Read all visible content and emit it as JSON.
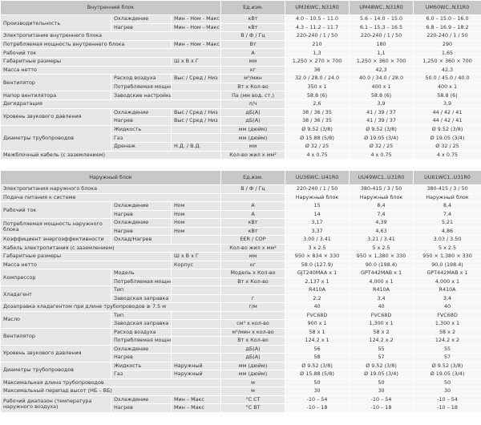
{
  "sections": [
    {
      "header": {
        "title": "Внутренний блок",
        "unit": "Ед.изм.",
        "models": [
          "UM36WC..N31R0",
          "UM48WC..N31R0",
          "UM60WC..N31R0"
        ]
      },
      "groups": [
        {
          "name": "Производительность",
          "rows": [
            {
              "sub": "Охлаждение",
              "mode": "Мин - Ном - Макс",
              "unit": "кВт",
              "values": [
                "4.0 – 10.5 – 11.0",
                "5.6 – 14.0 – 15.0",
                "6.0 – 15.0 – 16.0"
              ]
            },
            {
              "sub": "Нагрев",
              "mode": "Мин - Ном - Макс",
              "unit": "кВт",
              "values": [
                "4.3 – 11.2 – 11.7",
                "6.1 – 15.3 – 16.5",
                "6.8 – 16.9 – 18.2"
              ]
            }
          ]
        },
        {
          "name": "Электропитание внутреннего блока",
          "rows": [
            {
              "unit": "В / Ф / Гц",
              "values": [
                "220-240 / 1 / 50",
                "220-240 / 1 / 50",
                "220-240 / 1 / 50"
              ]
            }
          ]
        },
        {
          "name": "Потребляемая мощность внутреннего блока",
          "rows": [
            {
              "mode": "Мин - Ном - Макс",
              "unit": "Вт",
              "values": [
                "210",
                "180",
                "290"
              ]
            }
          ]
        },
        {
          "name": "Рабочий ток",
          "rows": [
            {
              "unit": "А",
              "values": [
                "1,3",
                "1,1",
                "1,65"
              ]
            }
          ]
        },
        {
          "name": "Габаритные размеры",
          "rows": [
            {
              "mode": "Ш x В x Г",
              "unit": "мм",
              "values": [
                "1,250 × 270 × 700",
                "1,250 × 360 × 700",
                "1,250 × 360 × 700"
              ]
            }
          ]
        },
        {
          "name": "Масса нетто",
          "rows": [
            {
              "unit": "кг",
              "values": [
                "36",
                "42,3",
                "42,3"
              ]
            }
          ]
        },
        {
          "name": "Вентилятор",
          "rows": [
            {
              "sub": "Расход воздуха",
              "mode": "Выс / Сред / Низ",
              "unit": "м³/мин",
              "values": [
                "32.0 / 28.0 / 24.0",
                "40.0 / 34.0 / 28.0",
                "50.0 / 45.0 / 40.0"
              ]
            },
            {
              "sub": "Потребляемая мощность",
              "unit": "Вт x Кол-во",
              "values": [
                "350 x 1",
                "400 x 1",
                "400 x 1"
              ]
            }
          ]
        },
        {
          "name": "Напор вентилятора",
          "rows": [
            {
              "sub": "Заводские настройки",
              "unit": "Па (мм вод. ст.)",
              "values": [
                "58.8 (6)",
                "58.8 (6)",
                "58.8 (6)"
              ]
            }
          ]
        },
        {
          "name": "Дегидратация",
          "rows": [
            {
              "unit": "л/ч",
              "values": [
                "2,6",
                "3,9",
                "3,9"
              ]
            }
          ]
        },
        {
          "name": "Уровень звукового давления",
          "rows": [
            {
              "sub": "Охлаждение",
              "mode": "Выс / Сред / Низ",
              "unit": "дБ(А)",
              "values": [
                "38 / 36 / 35",
                "41 / 39 / 37",
                "44 / 42 / 41"
              ]
            },
            {
              "sub": "Нагрев",
              "mode": "Выс / Сред / Низ",
              "unit": "дБ(А)",
              "values": [
                "38 / 36 / 35",
                "41 / 39 / 37",
                "44 / 42 / 41"
              ]
            }
          ]
        },
        {
          "name": "Диаметры трубопроводов",
          "rows": [
            {
              "sub": "Жидкость",
              "unit": "мм (дюйм)",
              "values": [
                "Ø 9.52 (3/8)",
                "Ø 9.52 (3/8)",
                "Ø 9.52 (3/8)"
              ]
            },
            {
              "sub": "Газ",
              "unit": "мм (дюйм)",
              "values": [
                "Ø 15.88 (5/8)",
                "Ø 19.05 (3/4)",
                "Ø 19.05 (3/4)"
              ]
            },
            {
              "sub": "Дренаж",
              "mode": "Н.Д. / В.Д.",
              "unit": "мм",
              "values": [
                "Ø 32 / 25",
                "Ø 32 / 25",
                "Ø 32 / 25"
              ]
            }
          ]
        },
        {
          "name": "Межблочный кабель (с заземлением)",
          "rows": [
            {
              "unit": "Кол-во жил x мм²",
              "values": [
                "4 x 0.75",
                "4 x 0.75",
                "4 x 0.75"
              ]
            }
          ]
        }
      ]
    },
    {
      "header": {
        "title": "Наружный блок",
        "unit": "Ед.изм.",
        "models": [
          "UU36WC..U41R0",
          "UU49WC1..U31R0",
          "UU61WC1..U31R0"
        ]
      },
      "groups": [
        {
          "name": "Электропитания наружного блока",
          "rows": [
            {
              "unit": "В / Ф / Гц",
              "values": [
                "220-240 / 1 / 50",
                "380-415 / 3 / 50",
                "380-415 / 3 / 50"
              ]
            }
          ]
        },
        {
          "name": "Подача питания к системе",
          "rows": [
            {
              "values": [
                "Наружный блок",
                "Наружный блок",
                "Наружный блок"
              ]
            }
          ]
        },
        {
          "name": "Рабочий ток",
          "rows": [
            {
              "sub": "Охлаждение",
              "mode": "Ном",
              "unit": "А",
              "values": [
                "15",
                "8,4",
                "8,4"
              ]
            },
            {
              "sub": "Нагрев",
              "mode": "Ном",
              "unit": "А",
              "values": [
                "14",
                "7,4",
                "7,4"
              ]
            }
          ]
        },
        {
          "name": "Потребляемая мощность наружного блока",
          "rows": [
            {
              "sub": "Охлаждение",
              "mode": "Ном",
              "unit": "кВт",
              "values": [
                "3,17",
                "4,39",
                "5,21"
              ]
            },
            {
              "sub": "Нагрев",
              "mode": "Ном",
              "unit": "кВт",
              "values": [
                "3,37",
                "4,63",
                "4,86"
              ]
            }
          ]
        },
        {
          "name": "Коэффициент энергоэффективности",
          "rows": [
            {
              "sub": "Охлад/Нагрев",
              "unit": "EER / COP",
              "values": [
                "3.00 / 3.41",
                "3.21 / 3.41",
                "3.03 / 3.50"
              ]
            }
          ]
        },
        {
          "name": "Кабель электропитания (с заземлением)",
          "rows": [
            {
              "unit": "Кол-во жил x мм²",
              "values": [
                "3 x 2.5",
                "5 x 2.5",
                "5 x 2.5"
              ]
            }
          ]
        },
        {
          "name": "Габаритные размеры",
          "rows": [
            {
              "mode": "Ш x В x Г",
              "unit": "мм",
              "values": [
                "950 × 834 × 330",
                "950 × 1,380 × 330",
                "950 × 1,380 × 330"
              ]
            }
          ]
        },
        {
          "name": "Масса нетто",
          "rows": [
            {
              "mode": "Корпус",
              "unit": "кг",
              "values": [
                "58.0 (127.9)",
                "90.0 (198.4)",
                "90.0 (198.4)"
              ]
            }
          ]
        },
        {
          "name": "Компрессор",
          "rows": [
            {
              "sub": "Модель",
              "unit": "Модель x Кол-во",
              "values": [
                "GJT240MAA x 1",
                "GPT442MAB x 1",
                "GPT442MAB x 1"
              ]
            },
            {
              "sub": "Потребляемая мощность",
              "unit": "Вт x Кол-во",
              "values": [
                "2,137 x 1",
                "4,000 x 1",
                "4,000 x 1"
              ]
            }
          ]
        },
        {
          "name": "Хладагент",
          "rows": [
            {
              "sub": "Тип",
              "values": [
                "R410A",
                "R410A",
                "R410A"
              ]
            },
            {
              "sub": "Заводская заправка",
              "unit": "г",
              "values": [
                "2,2",
                "3,4",
                "3,4"
              ]
            }
          ]
        },
        {
          "name": "Дозаправка хладагентом при длине трубопроводов ≥ 7.5 м",
          "rows": [
            {
              "unit": "г/м",
              "values": [
                "40",
                "40",
                "40"
              ]
            }
          ]
        },
        {
          "name": "Масло",
          "rows": [
            {
              "sub": "Тип",
              "values": [
                "FVC68D",
                "FVC68D",
                "FVC68D"
              ]
            },
            {
              "sub": "Заводская заправка",
              "unit": "см³ x кол-во",
              "values": [
                "900 x 1",
                "1,300 x 1",
                "1,300 x 1"
              ]
            }
          ]
        },
        {
          "name": "Вентилятор",
          "rows": [
            {
              "sub": "Расход воздуха",
              "unit": "м³/мин x кол-во",
              "values": [
                "58 x 1",
                "58 x 2",
                "58 x 2"
              ]
            },
            {
              "sub": "Потребляемая мощность",
              "unit": "Вт x Кол-во",
              "values": [
                "124.2 x 1",
                "124.2 x 2",
                "124.2 x 2"
              ]
            }
          ]
        },
        {
          "name": "Уровень звукового давления",
          "rows": [
            {
              "sub": "Охлаждение",
              "unit": "дБ(А)",
              "values": [
                "56",
                "55",
                "55"
              ]
            },
            {
              "sub": "Нагрев",
              "unit": "дБ(А)",
              "values": [
                "58",
                "57",
                "57"
              ]
            }
          ]
        },
        {
          "name": "Диаметры трубопроводов",
          "rows": [
            {
              "sub": "Жидкость",
              "mode": "Наружный",
              "unit": "мм (дюйм)",
              "values": [
                "Ø 9.52 (3/8)",
                "Ø 9.52 (3/8)",
                "Ø 9.52 (3/8)"
              ]
            },
            {
              "sub": "Газ",
              "mode": "Наружный",
              "unit": "мм (дюйм)",
              "values": [
                "Ø 15.88 (5/8)",
                "Ø 19.05 (3/4)",
                "Ø 19.05 (3/4)"
              ]
            }
          ]
        },
        {
          "name": "Максимальная длина трубопроводов",
          "rows": [
            {
              "unit": "м",
              "values": [
                "50",
                "50",
                "50"
              ]
            }
          ]
        },
        {
          "name": "Максимальный перепад высот (НБ – ВБ)",
          "rows": [
            {
              "unit": "м",
              "values": [
                "30",
                "30",
                "30"
              ]
            }
          ]
        },
        {
          "name": "Рабочий диапазон (температура наружного воздуха)",
          "rows": [
            {
              "sub": "Охлаждение",
              "mode": "Мин – Макс",
              "unit": "°C СТ",
              "values": [
                "-10 – 54",
                "-10 – 54",
                "-10 – 54"
              ]
            },
            {
              "sub": "Нагрев",
              "mode": "Мин – Макс",
              "unit": "°C ВТ",
              "values": [
                "-10 – 18",
                "-10 – 18",
                "-10 – 18"
              ]
            }
          ]
        }
      ]
    }
  ]
}
